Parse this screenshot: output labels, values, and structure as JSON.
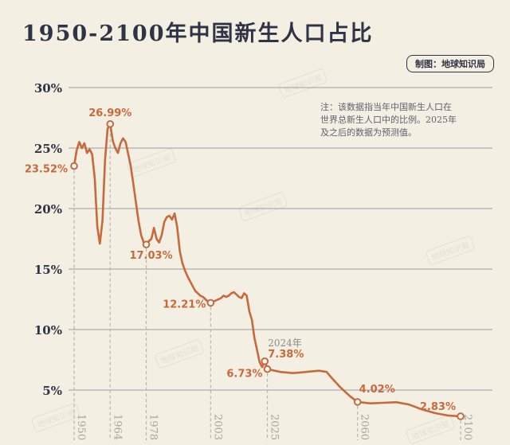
{
  "header": {
    "title": "1950-2100年中国新生人口占比",
    "credit": "制图：地球知识局"
  },
  "note": [
    "注：该数据指当年中国新生人口在",
    "世界总新生人口中的比例。2025年",
    "及之后的数据为预测值。"
  ],
  "watermark_text": "地球知识局",
  "colors": {
    "line": "#c8693c",
    "text_dark": "#2e3346",
    "grid": "#9a9da6",
    "background": "#f4efe3"
  },
  "chart_data": {
    "type": "line",
    "title": "1950-2100年中国新生人口占比",
    "xlim": [
      1950,
      2100
    ],
    "ylim": [
      3,
      30
    ],
    "y_ticks": [
      {
        "v": 30,
        "label": "30%"
      },
      {
        "v": 25,
        "label": "25%"
      },
      {
        "v": 20,
        "label": "20%"
      },
      {
        "v": 15,
        "label": "15%"
      },
      {
        "v": 10,
        "label": "10%"
      },
      {
        "v": 5,
        "label": "5%"
      }
    ],
    "x_ticks": [
      {
        "x": 1950,
        "label": "1950"
      },
      {
        "x": 1964,
        "label": "1964"
      },
      {
        "x": 1978,
        "label": "1978"
      },
      {
        "x": 2003,
        "label": "2003"
      },
      {
        "x": 2025,
        "label": "2025"
      },
      {
        "x": 2060,
        "label": "2060"
      },
      {
        "x": 2100,
        "label": "2100"
      }
    ],
    "series": [
      {
        "points": [
          [
            1950,
            23.52
          ],
          [
            1951,
            24.8
          ],
          [
            1952,
            25.5
          ],
          [
            1953,
            25.0
          ],
          [
            1954,
            25.4
          ],
          [
            1955,
            24.6
          ],
          [
            1956,
            24.9
          ],
          [
            1957,
            24.5
          ],
          [
            1958,
            22.5
          ],
          [
            1959,
            18.5
          ],
          [
            1960,
            17.1
          ],
          [
            1961,
            19.0
          ],
          [
            1962,
            24.0
          ],
          [
            1963,
            26.6
          ],
          [
            1964,
            26.99
          ],
          [
            1965,
            25.6
          ],
          [
            1966,
            25.0
          ],
          [
            1967,
            24.6
          ],
          [
            1968,
            25.4
          ],
          [
            1969,
            25.8
          ],
          [
            1970,
            25.5
          ],
          [
            1971,
            24.5
          ],
          [
            1972,
            23.5
          ],
          [
            1973,
            22.0
          ],
          [
            1974,
            20.5
          ],
          [
            1975,
            19.0
          ],
          [
            1976,
            17.8
          ],
          [
            1977,
            17.2
          ],
          [
            1978,
            17.03
          ],
          [
            1979,
            17.3
          ],
          [
            1980,
            17.5
          ],
          [
            1981,
            18.4
          ],
          [
            1982,
            17.5
          ],
          [
            1983,
            17.2
          ],
          [
            1984,
            17.8
          ],
          [
            1985,
            18.9
          ],
          [
            1986,
            19.3
          ],
          [
            1987,
            19.4
          ],
          [
            1988,
            19.1
          ],
          [
            1989,
            19.6
          ],
          [
            1990,
            18.5
          ],
          [
            1991,
            16.5
          ],
          [
            1992,
            15.5
          ],
          [
            1993,
            14.9
          ],
          [
            1994,
            14.4
          ],
          [
            1995,
            14.0
          ],
          [
            1996,
            13.6
          ],
          [
            1997,
            13.2
          ],
          [
            1998,
            13.0
          ],
          [
            1999,
            12.8
          ],
          [
            2000,
            12.7
          ],
          [
            2001,
            12.5
          ],
          [
            2002,
            12.3
          ],
          [
            2003,
            12.21
          ],
          [
            2004,
            12.3
          ],
          [
            2005,
            12.4
          ],
          [
            2006,
            12.5
          ],
          [
            2007,
            12.6
          ],
          [
            2008,
            12.8
          ],
          [
            2009,
            12.7
          ],
          [
            2010,
            12.8
          ],
          [
            2011,
            13.0
          ],
          [
            2012,
            13.1
          ],
          [
            2013,
            12.9
          ],
          [
            2014,
            12.7
          ],
          [
            2015,
            12.6
          ],
          [
            2016,
            13.0
          ],
          [
            2017,
            12.8
          ],
          [
            2018,
            11.5
          ],
          [
            2019,
            10.8
          ],
          [
            2020,
            9.3
          ],
          [
            2021,
            8.3
          ],
          [
            2022,
            7.3
          ],
          [
            2023,
            6.9
          ],
          [
            2024,
            7.38
          ],
          [
            2025,
            6.73
          ],
          [
            2030,
            6.5
          ],
          [
            2035,
            6.4
          ],
          [
            2040,
            6.5
          ],
          [
            2045,
            6.6
          ],
          [
            2048,
            6.5
          ],
          [
            2050,
            6.0
          ],
          [
            2053,
            5.3
          ],
          [
            2057,
            4.5
          ],
          [
            2060,
            4.02
          ],
          [
            2065,
            3.9
          ],
          [
            2070,
            3.95
          ],
          [
            2075,
            4.0
          ],
          [
            2080,
            3.8
          ],
          [
            2085,
            3.4
          ],
          [
            2090,
            3.1
          ],
          [
            2095,
            2.9
          ],
          [
            2100,
            2.83
          ]
        ]
      }
    ],
    "annotations": [
      {
        "x": 1950,
        "y": 23.52,
        "label": "23.52%"
      },
      {
        "x": 1964,
        "y": 26.99,
        "label": "26.99%"
      },
      {
        "x": 1978,
        "y": 17.03,
        "label": "17.03%"
      },
      {
        "x": 2003,
        "y": 12.21,
        "label": "12.21%"
      },
      {
        "x": 2024,
        "y": 7.38,
        "label": "7.38%",
        "year_label": "2024年"
      },
      {
        "x": 2025,
        "y": 6.73,
        "label": "6.73%"
      },
      {
        "x": 2060,
        "y": 4.02,
        "label": "4.02%"
      },
      {
        "x": 2100,
        "y": 2.83,
        "label": "2.83%"
      }
    ]
  }
}
